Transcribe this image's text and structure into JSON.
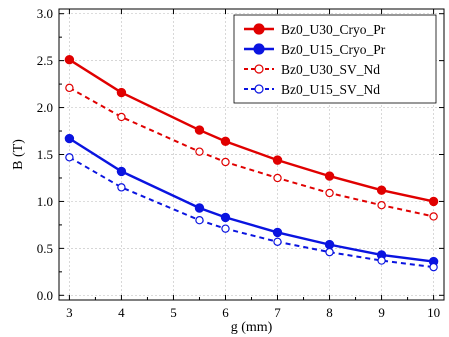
{
  "chart_data": {
    "type": "line",
    "xlabel": "g (mm)",
    "ylabel": "B (T)",
    "xlim": [
      2.8,
      10.2
    ],
    "ylim": [
      -0.05,
      3.05
    ],
    "x_ticks": [
      3,
      4,
      5,
      6,
      7,
      8,
      9,
      10
    ],
    "y_ticks": [
      0.0,
      0.5,
      1.0,
      1.5,
      2.0,
      2.5,
      3.0
    ],
    "y_tick_labels": [
      "0.0",
      "0.5",
      "1.0",
      "1.5",
      "2.0",
      "2.5",
      "3.0"
    ],
    "x_tick_labels": [
      "3",
      "4",
      "5",
      "6",
      "7",
      "8",
      "9",
      "10"
    ],
    "grid": true,
    "legend_position": "top-right",
    "series": [
      {
        "name": "Bz0_U30_Cryo_Pr",
        "color": "#e00000",
        "line_style": "solid",
        "marker": "filled-circle",
        "x": [
          3,
          4,
          5.5,
          6,
          7,
          8,
          9,
          10
        ],
        "values": [
          2.51,
          2.16,
          1.76,
          1.64,
          1.44,
          1.27,
          1.12,
          1.0
        ]
      },
      {
        "name": "Bz0_U15_Cryo_Pr",
        "color": "#0a14e0",
        "line_style": "solid",
        "marker": "filled-circle",
        "x": [
          3,
          4,
          5.5,
          6,
          7,
          8,
          9,
          10
        ],
        "values": [
          1.67,
          1.32,
          0.93,
          0.83,
          0.67,
          0.54,
          0.43,
          0.36
        ]
      },
      {
        "name": "Bz0_U30_SV_Nd",
        "color": "#e00000",
        "line_style": "dashed",
        "marker": "open-circle",
        "x": [
          3,
          4,
          5.5,
          6,
          7,
          8,
          9,
          10
        ],
        "values": [
          2.21,
          1.9,
          1.53,
          1.42,
          1.25,
          1.09,
          0.96,
          0.84
        ]
      },
      {
        "name": "Bz0_U15_SV_Nd",
        "color": "#0a14e0",
        "line_style": "dashed",
        "marker": "open-circle",
        "x": [
          3,
          4,
          5.5,
          6,
          7,
          8,
          9,
          10
        ],
        "values": [
          1.47,
          1.15,
          0.8,
          0.71,
          0.57,
          0.46,
          0.37,
          0.3
        ]
      }
    ]
  }
}
